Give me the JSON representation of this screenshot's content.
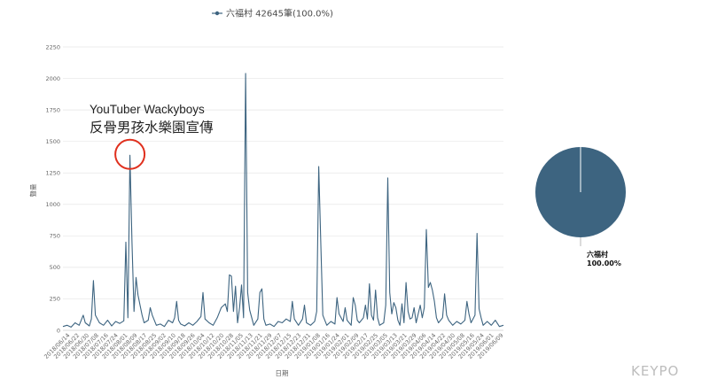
{
  "chart_data": [
    {
      "type": "line",
      "title": "",
      "legend": {
        "label": "六福村 42645筆(100.0%)",
        "position": "top-center"
      },
      "xlabel": "日期",
      "ylabel": "聲量",
      "ylim": [
        0,
        2250
      ],
      "yticks": [
        0,
        250,
        500,
        750,
        1000,
        1250,
        1500,
        1750,
        2000,
        2250
      ],
      "grid": true,
      "series_color": "#3d6480",
      "xtick_labels": [
        "2018/06/14",
        "2018/06/22",
        "2018/06/30",
        "2018/07/08",
        "2018/07/16",
        "2018/07/24",
        "2018/08/01",
        "2018/08/09",
        "2018/08/17",
        "2018/08/25",
        "2018/09/02",
        "2018/09/10",
        "2018/09/18",
        "2018/09/26",
        "2018/10/04",
        "2018/10/12",
        "2018/10/20",
        "2018/10/28",
        "2018/11/05",
        "2018/11/13",
        "2018/11/21",
        "2018/11/29",
        "2018/12/07",
        "2018/12/15",
        "2018/12/23",
        "2018/12/31",
        "2019/01/08",
        "2019/01/16",
        "2019/01/24",
        "2019/02/01",
        "2019/02/09",
        "2019/02/17",
        "2019/02/25",
        "2019/03/05",
        "2019/03/13",
        "2019/03/21",
        "2019/03/29",
        "2019/04/06",
        "2019/04/14",
        "2019/04/22",
        "2019/04/30",
        "2019/05/08",
        "2019/05/16",
        "2019/05/24",
        "2019/06/01",
        "2019/06/09"
      ],
      "points": [
        [
          0,
          30
        ],
        [
          2,
          40
        ],
        [
          4,
          25
        ],
        [
          6,
          60
        ],
        [
          8,
          40
        ],
        [
          10,
          120
        ],
        [
          11,
          60
        ],
        [
          13,
          35
        ],
        [
          14,
          90
        ],
        [
          15,
          395
        ],
        [
          16,
          120
        ],
        [
          18,
          60
        ],
        [
          20,
          40
        ],
        [
          22,
          80
        ],
        [
          24,
          35
        ],
        [
          26,
          70
        ],
        [
          28,
          55
        ],
        [
          30,
          75
        ],
        [
          31,
          700
        ],
        [
          32,
          100
        ],
        [
          33,
          1390
        ],
        [
          34,
          700
        ],
        [
          35,
          150
        ],
        [
          36,
          420
        ],
        [
          37,
          280
        ],
        [
          38,
          200
        ],
        [
          39,
          120
        ],
        [
          40,
          60
        ],
        [
          42,
          80
        ],
        [
          43,
          180
        ],
        [
          44,
          120
        ],
        [
          46,
          40
        ],
        [
          48,
          50
        ],
        [
          50,
          30
        ],
        [
          52,
          80
        ],
        [
          54,
          60
        ],
        [
          55,
          100
        ],
        [
          56,
          230
        ],
        [
          57,
          80
        ],
        [
          58,
          50
        ],
        [
          60,
          35
        ],
        [
          62,
          60
        ],
        [
          64,
          40
        ],
        [
          66,
          70
        ],
        [
          68,
          110
        ],
        [
          69,
          300
        ],
        [
          70,
          90
        ],
        [
          72,
          60
        ],
        [
          74,
          40
        ],
        [
          76,
          100
        ],
        [
          78,
          180
        ],
        [
          80,
          210
        ],
        [
          81,
          150
        ],
        [
          82,
          440
        ],
        [
          83,
          430
        ],
        [
          84,
          150
        ],
        [
          85,
          350
        ],
        [
          86,
          60
        ],
        [
          87,
          180
        ],
        [
          88,
          360
        ],
        [
          89,
          100
        ],
        [
          90,
          2040
        ],
        [
          91,
          300
        ],
        [
          92,
          160
        ],
        [
          94,
          40
        ],
        [
          96,
          90
        ],
        [
          97,
          300
        ],
        [
          98,
          330
        ],
        [
          99,
          90
        ],
        [
          100,
          40
        ],
        [
          102,
          50
        ],
        [
          104,
          30
        ],
        [
          106,
          70
        ],
        [
          108,
          60
        ],
        [
          110,
          90
        ],
        [
          112,
          70
        ],
        [
          113,
          230
        ],
        [
          114,
          90
        ],
        [
          116,
          40
        ],
        [
          118,
          90
        ],
        [
          119,
          200
        ],
        [
          120,
          60
        ],
        [
          122,
          40
        ],
        [
          124,
          70
        ],
        [
          125,
          150
        ],
        [
          126,
          1300
        ],
        [
          127,
          700
        ],
        [
          128,
          120
        ],
        [
          130,
          40
        ],
        [
          132,
          70
        ],
        [
          134,
          50
        ],
        [
          135,
          260
        ],
        [
          136,
          130
        ],
        [
          138,
          70
        ],
        [
          139,
          180
        ],
        [
          140,
          80
        ],
        [
          142,
          40
        ],
        [
          143,
          260
        ],
        [
          144,
          200
        ],
        [
          145,
          80
        ],
        [
          146,
          60
        ],
        [
          148,
          100
        ],
        [
          149,
          200
        ],
        [
          150,
          90
        ],
        [
          151,
          370
        ],
        [
          152,
          120
        ],
        [
          153,
          80
        ],
        [
          154,
          320
        ],
        [
          155,
          100
        ],
        [
          156,
          40
        ],
        [
          158,
          60
        ],
        [
          159,
          200
        ],
        [
          160,
          1210
        ],
        [
          161,
          300
        ],
        [
          162,
          130
        ],
        [
          163,
          220
        ],
        [
          164,
          180
        ],
        [
          165,
          80
        ],
        [
          166,
          40
        ],
        [
          167,
          210
        ],
        [
          168,
          60
        ],
        [
          169,
          380
        ],
        [
          170,
          150
        ],
        [
          171,
          90
        ],
        [
          172,
          100
        ],
        [
          173,
          180
        ],
        [
          174,
          60
        ],
        [
          176,
          200
        ],
        [
          177,
          100
        ],
        [
          178,
          180
        ],
        [
          179,
          800
        ],
        [
          180,
          340
        ],
        [
          181,
          380
        ],
        [
          182,
          320
        ],
        [
          183,
          230
        ],
        [
          184,
          100
        ],
        [
          185,
          60
        ],
        [
          187,
          100
        ],
        [
          188,
          290
        ],
        [
          189,
          120
        ],
        [
          190,
          80
        ],
        [
          192,
          40
        ],
        [
          194,
          70
        ],
        [
          196,
          50
        ],
        [
          198,
          80
        ],
        [
          199,
          230
        ],
        [
          200,
          130
        ],
        [
          201,
          60
        ],
        [
          203,
          120
        ],
        [
          204,
          770
        ],
        [
          205,
          170
        ],
        [
          206,
          100
        ],
        [
          207,
          40
        ],
        [
          209,
          70
        ],
        [
          211,
          40
        ],
        [
          213,
          80
        ],
        [
          215,
          30
        ],
        [
          217,
          40
        ]
      ],
      "annotation": {
        "line1": "YouTuber Wackyboys",
        "line2": "反骨男孩水樂園宣傳",
        "target_index": 33
      }
    },
    {
      "type": "pie",
      "slices": [
        {
          "label": "六福村",
          "value": 42645,
          "percent": "100.00%",
          "color": "#3d6480"
        }
      ]
    }
  ],
  "watermark": "KEYPO"
}
